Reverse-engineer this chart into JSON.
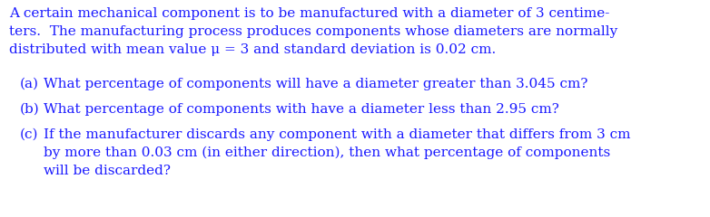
{
  "background_color": "#ffffff",
  "text_color": "#1a1aff",
  "figsize": [
    7.82,
    2.4
  ],
  "dpi": 100,
  "para_line1": "A certain mechanical component is to be manufactured with a diameter of 3 centime-",
  "para_line2": "ters.  The manufacturing process produces components whose diameters are normally",
  "para_line3": "distributed with mean value μ = 3 and standard deviation is 0.02 cm.",
  "item_a_label": "(a)",
  "item_a_text": "What percentage of components will have a diameter greater than 3.045 cm?",
  "item_b_label": "(b)",
  "item_b_text": "What percentage of components with have a diameter less than 2.95 cm?",
  "item_c_label": "(c)",
  "item_c_line1": "If the manufacturer discards any component with a diameter that differs from 3 cm",
  "item_c_line2": "by more than 0.03 cm (in either direction), then what percentage of components",
  "item_c_line3": "will be discarded?",
  "font_size": 11.0,
  "font_family": "DejaVu Serif"
}
